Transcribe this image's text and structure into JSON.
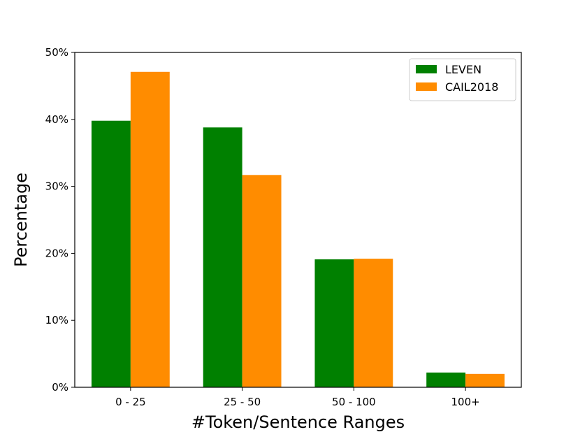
{
  "chart_data": {
    "type": "bar",
    "title": "",
    "xlabel": "#Token/Sentence Ranges",
    "ylabel": "Percentage",
    "categories": [
      "0 - 25",
      "25 - 50",
      "50 - 100",
      "100+"
    ],
    "series": [
      {
        "name": "LEVEN",
        "color": "#008000",
        "values": [
          39.8,
          38.8,
          19.1,
          2.2
        ]
      },
      {
        "name": "CAIL2018",
        "color": "#ff8c00",
        "values": [
          47.1,
          31.7,
          19.2,
          2.0
        ]
      }
    ],
    "ylim": [
      0,
      50
    ],
    "yticks": [
      "0%",
      "10%",
      "20%",
      "30%",
      "40%",
      "50%"
    ],
    "legend": {
      "position": "top-right"
    },
    "grid": false
  }
}
